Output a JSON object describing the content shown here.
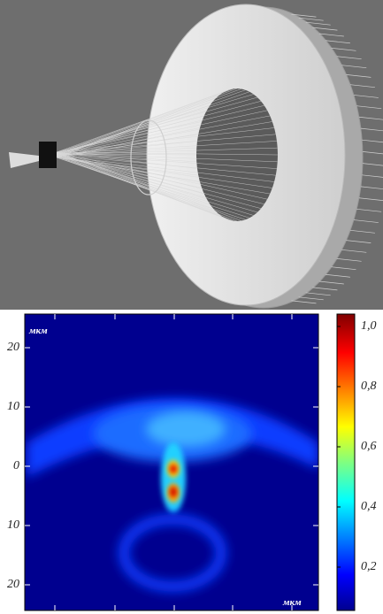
{
  "heatmap": {
    "unit_top": "мкм",
    "unit_bottom": "мкм",
    "y_tick_labels": [
      "20",
      "10",
      "0",
      "10",
      "20"
    ]
  },
  "colorbar": {
    "tick_labels": [
      "1,0",
      "0,8",
      "0,6",
      "0,4",
      "0,2"
    ]
  }
}
